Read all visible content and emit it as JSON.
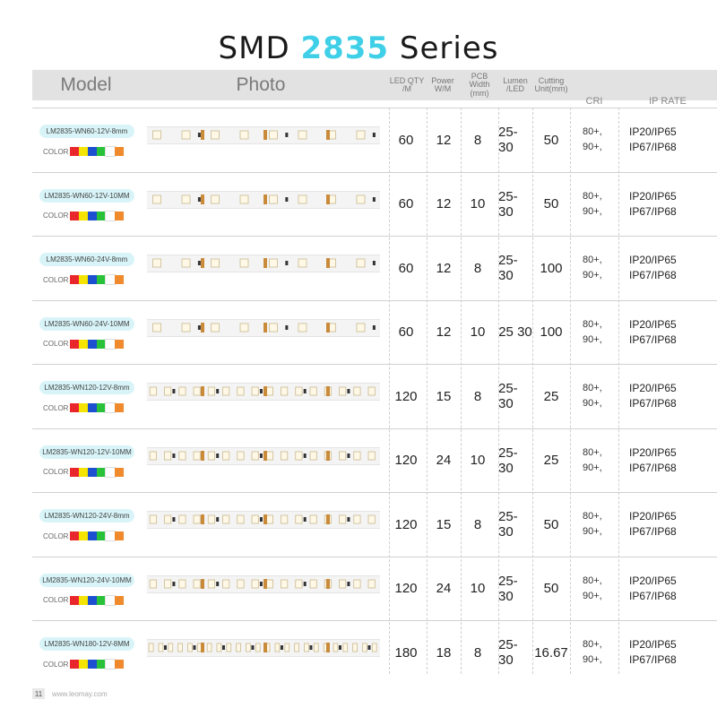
{
  "title": {
    "prefix": "SMD",
    "accent": "2835",
    "suffix": "Series"
  },
  "header": {
    "model": "Model",
    "photo": "Photo",
    "led_qty": "LED QTY /M",
    "power": "Power W/M",
    "pcb_width": "PCB Width (mm)",
    "lumen": "Lumen /LED",
    "cutting": "Cutting Unit(mm)",
    "cri": "CRI",
    "ip_rate": "IP RATE"
  },
  "color_label": "COLOR",
  "colors": [
    "#e8262b",
    "#f4e400",
    "#1d4fd1",
    "#27c23a",
    "#ffffff",
    "#f08a2c"
  ],
  "rows": [
    {
      "model": "LM2835-WN60-12V-8mm",
      "led_qty": "60",
      "power": "12",
      "pcb": "8",
      "lumen": "25-30",
      "cut": "50",
      "cri1": "80+,",
      "cri2": "90+,",
      "ip1": "IP20/IP65",
      "ip2": "IP67/IP68"
    },
    {
      "model": "LM2835-WN60-12V-10MM",
      "led_qty": "60",
      "power": "12",
      "pcb": "10",
      "lumen": "25-30",
      "cut": "50",
      "cri1": "80+,",
      "cri2": "90+,",
      "ip1": "IP20/IP65",
      "ip2": "IP67/IP68"
    },
    {
      "model": "LM2835-WN60-24V-8mm",
      "led_qty": "60",
      "power": "12",
      "pcb": "8",
      "lumen": "25-30",
      "cut": "100",
      "cri1": "80+,",
      "cri2": "90+,",
      "ip1": "IP20/IP65",
      "ip2": "IP67/IP68"
    },
    {
      "model": "LM2835-WN60-24V-10MM",
      "led_qty": "60",
      "power": "12",
      "pcb": "10",
      "lumen": "25 30",
      "cut": "100",
      "cri1": "80+,",
      "cri2": "90+,",
      "ip1": "IP20/IP65",
      "ip2": "IP67/IP68"
    },
    {
      "model": "LM2835-WN120-12V-8mm",
      "led_qty": "120",
      "power": "15",
      "pcb": "8",
      "lumen": "25-30",
      "cut": "25",
      "cri1": "80+,",
      "cri2": "90+,",
      "ip1": "IP20/IP65",
      "ip2": "IP67/IP68"
    },
    {
      "model": "LM2835-WN120-12V-10MM",
      "led_qty": "120",
      "power": "24",
      "pcb": "10",
      "lumen": "25-30",
      "cut": "25",
      "cri1": "80+,",
      "cri2": "90+,",
      "ip1": "IP20/IP65",
      "ip2": "IP67/IP68"
    },
    {
      "model": "LM2835-WN120-24V-8mm",
      "led_qty": "120",
      "power": "15",
      "pcb": "8",
      "lumen": "25-30",
      "cut": "50",
      "cri1": "80+,",
      "cri2": "90+,",
      "ip1": "IP20/IP65",
      "ip2": "IP67/IP68"
    },
    {
      "model": "LM2835-WN120-24V-10MM",
      "led_qty": "120",
      "power": "24",
      "pcb": "10",
      "lumen": "25-30",
      "cut": "50",
      "cri1": "80+,",
      "cri2": "90+,",
      "ip1": "IP20/IP65",
      "ip2": "IP67/IP68"
    },
    {
      "model": "LM2835-WN180-12V-8MM",
      "led_qty": "180",
      "power": "18",
      "pcb": "8",
      "lumen": "25-30",
      "cut": "16.67",
      "cri1": "80+,",
      "cri2": "90+,",
      "ip1": "IP20/IP65",
      "ip2": "IP67/IP68"
    }
  ],
  "footer": {
    "page": "11",
    "site": "www.leomay.com"
  }
}
